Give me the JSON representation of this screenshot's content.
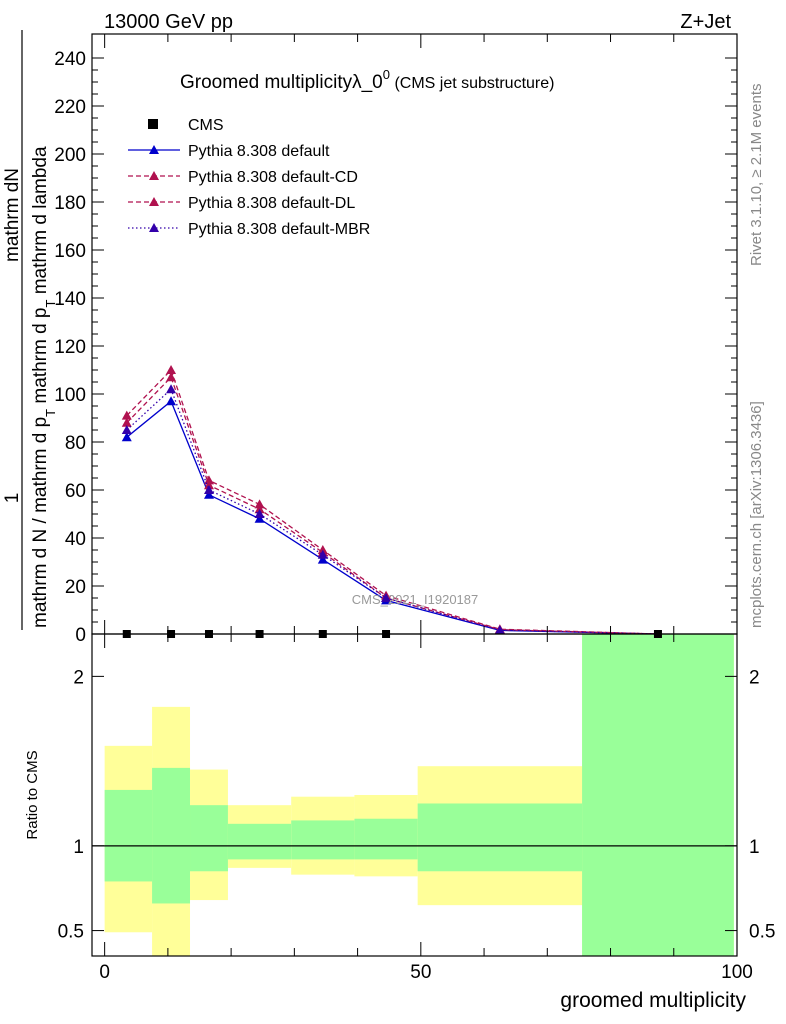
{
  "header": {
    "left_label": "13000 GeV pp",
    "right_label": "Z+Jet"
  },
  "side_text": {
    "rivet": "Rivet 3.1.10, ≥ 2.1M events",
    "mcplots": "mcplots.cern.ch [arXiv:1306.3436]"
  },
  "watermark": "CMS_2021_I1920187",
  "colors": {
    "data": "#000000",
    "default": "#0000cc",
    "cd": "#b0124f",
    "dl": "#b0124f",
    "mbr": "#3300aa",
    "band_inner": "#99ff99",
    "band_outer": "#ffff99"
  },
  "chart_data": [
    {
      "type": "line",
      "title": "Groomed multiplicityλ_0",
      "title_superscript": "0",
      "subtitle": "(CMS jet substructure)",
      "ylabel_numerator": "mathrm dN",
      "ylabel_numerator_lead": "1",
      "ylabel_denominator": "mathrm d N / mathrm d p",
      "ylabel_denominator_sub": "T",
      "ylabel_right_part": "mathrm d p",
      "ylabel_right_sub": "T",
      "ylabel_right_tail": "mathrm d lambda",
      "ylabel_mid_part": "mathrm d p",
      "ylabel_mid_sub": "T",
      "ylabel_mid_tail": "mathrm d lambda",
      "xlim": [
        -2,
        100
      ],
      "ylim": [
        0,
        250
      ],
      "yticks": [
        0,
        20,
        40,
        60,
        80,
        100,
        120,
        140,
        160,
        180,
        200,
        220,
        240
      ],
      "legend_position": "top-left",
      "legend": [
        "CMS",
        "Pythia 8.308 default",
        "Pythia 8.308 default-CD",
        "Pythia 8.308 default-DL",
        "Pythia 8.308 default-MBR"
      ],
      "data_points": {
        "name": "CMS",
        "x": [
          3.5,
          10.5,
          16.5,
          24.5,
          34.5,
          44.5,
          87.5
        ],
        "y": [
          0,
          0,
          0,
          0,
          0,
          0,
          0
        ]
      },
      "series": [
        {
          "name": "Pythia 8.308 default",
          "style": "solid",
          "x": [
            3.5,
            10.5,
            16.5,
            24.5,
            34.5,
            44.5,
            62.5,
            87.5
          ],
          "y": [
            82,
            97,
            58,
            48,
            31,
            14,
            1.5,
            0
          ]
        },
        {
          "name": "Pythia 8.308 default-CD",
          "style": "dashed",
          "x": [
            3.5,
            10.5,
            16.5,
            24.5,
            34.5,
            44.5,
            62.5,
            87.5
          ],
          "y": [
            88,
            107,
            62,
            52,
            34,
            15,
            1.8,
            0
          ]
        },
        {
          "name": "Pythia 8.308 default-DL",
          "style": "dashed",
          "x": [
            3.5,
            10.5,
            16.5,
            24.5,
            34.5,
            44.5,
            62.5,
            87.5
          ],
          "y": [
            91,
            110,
            64,
            54,
            35,
            16,
            2,
            0
          ]
        },
        {
          "name": "Pythia 8.308 default-MBR",
          "style": "dotted",
          "x": [
            3.5,
            10.5,
            16.5,
            24.5,
            34.5,
            44.5,
            62.5,
            87.5
          ],
          "y": [
            85,
            102,
            60,
            50,
            33,
            15,
            1.6,
            0
          ]
        }
      ]
    },
    {
      "type": "area",
      "ylabel": "Ratio to CMS",
      "xlabel": "groomed multiplicity",
      "xlim": [
        -2,
        100
      ],
      "xticks": [
        0,
        50,
        100
      ],
      "ylim": [
        0.35,
        2.25
      ],
      "yticks": [
        0.5,
        1,
        2
      ],
      "reference_line": 1,
      "bins": [
        {
          "x0": 0,
          "x1": 7.5,
          "inner": [
            0.79,
            1.33
          ],
          "outer": [
            0.49,
            1.59
          ]
        },
        {
          "x0": 7.5,
          "x1": 13.5,
          "inner": [
            0.66,
            1.46
          ],
          "outer": [
            0.35,
            1.82
          ]
        },
        {
          "x0": 13.5,
          "x1": 19.5,
          "inner": [
            0.85,
            1.24
          ],
          "outer": [
            0.68,
            1.45
          ]
        },
        {
          "x0": 19.5,
          "x1": 29.5,
          "inner": [
            0.92,
            1.13
          ],
          "outer": [
            0.87,
            1.24
          ]
        },
        {
          "x0": 29.5,
          "x1": 39.5,
          "inner": [
            0.92,
            1.15
          ],
          "outer": [
            0.83,
            1.29
          ]
        },
        {
          "x0": 39.5,
          "x1": 49.5,
          "inner": [
            0.92,
            1.16
          ],
          "outer": [
            0.82,
            1.3
          ]
        },
        {
          "x0": 49.5,
          "x1": 75.5,
          "inner": [
            0.85,
            1.25
          ],
          "outer": [
            0.65,
            1.47
          ]
        },
        {
          "x0": 75.5,
          "x1": 99.5,
          "inner": [
            0.35,
            2.25
          ],
          "outer": [
            0.35,
            2.25
          ]
        }
      ]
    }
  ]
}
